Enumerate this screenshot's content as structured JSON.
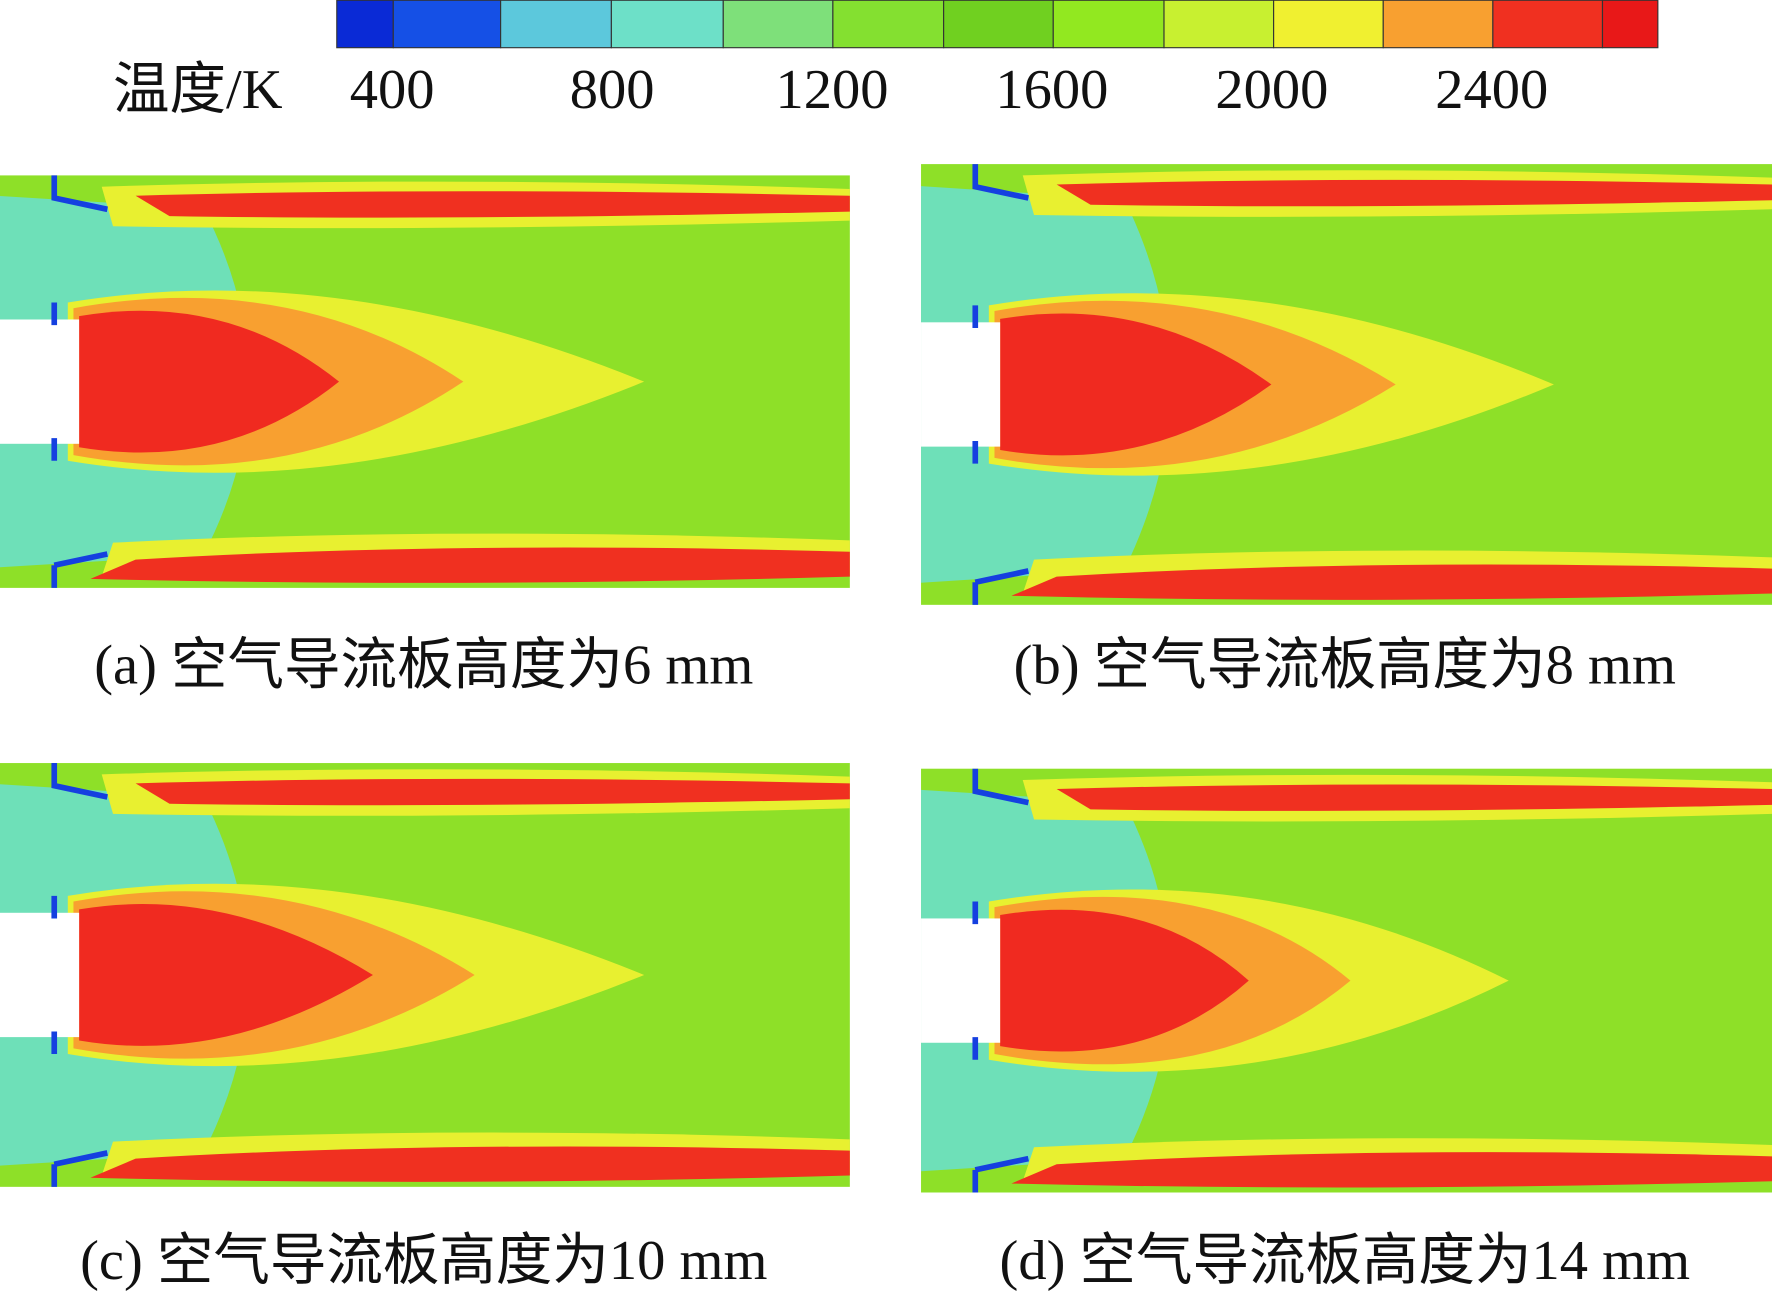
{
  "colorbar": {
    "label": "温度/K",
    "ticks": [
      400,
      800,
      1200,
      1600,
      2000,
      2400
    ]
  },
  "panels": [
    {
      "caption": "(a) 空气导流板高度为6 mm"
    },
    {
      "caption": "(b) 空气导流板高度为8 mm"
    },
    {
      "caption": "(c) 空气导流板高度为10 mm"
    },
    {
      "caption": "(d) 空气导流板高度为14 mm"
    }
  ]
}
